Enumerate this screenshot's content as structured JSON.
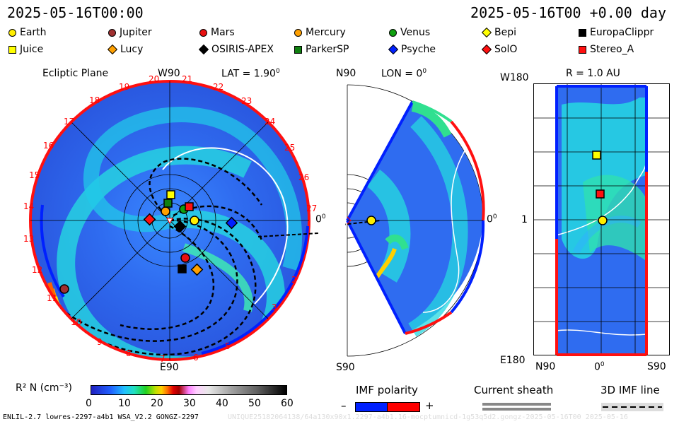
{
  "header": {
    "date_left": "2025-05-16T00:00",
    "date_right": "2025-05-16T00 +0.00 day"
  },
  "legend": [
    {
      "label": "Earth",
      "shape": "circle",
      "color": "#ffee00"
    },
    {
      "label": "Jupiter",
      "shape": "circle",
      "color": "#a03030"
    },
    {
      "label": "Mars",
      "shape": "circle",
      "color": "#e81010"
    },
    {
      "label": "Mercury",
      "shape": "circle",
      "color": "#ffa000"
    },
    {
      "label": "Venus",
      "shape": "circle",
      "color": "#10a010"
    },
    {
      "label": "Bepi",
      "shape": "diamond",
      "color": "#ffff00"
    },
    {
      "label": "EuropaClippr",
      "shape": "square",
      "color": "#000000"
    },
    {
      "label": "Juice",
      "shape": "square",
      "color": "#ffff00"
    },
    {
      "label": "Lucy",
      "shape": "diamond",
      "color": "#ffa000"
    },
    {
      "label": "OSIRIS-APEX",
      "shape": "diamond",
      "color": "#000000"
    },
    {
      "label": "ParkerSP",
      "shape": "square",
      "color": "#108010"
    },
    {
      "label": "Psyche",
      "shape": "diamond",
      "color": "#0020ff"
    },
    {
      "label": "SolO",
      "shape": "diamond",
      "color": "#ff1010"
    },
    {
      "label": "Stereo_A",
      "shape": "square",
      "color": "#ff1010"
    }
  ],
  "panel1": {
    "title": "Ecliptic Plane",
    "top_label": "W90",
    "bottom_label": "E90",
    "lat_label": "LAT = 1.90",
    "zero_label": "0",
    "tick_numbers": [
      "20",
      "21",
      "22",
      "23",
      "24",
      "25",
      "26",
      "27",
      "19",
      "18",
      "17",
      "16",
      "15",
      "14",
      "13",
      "12",
      "11",
      "10",
      "9",
      "8",
      "7",
      "6",
      "5",
      "4",
      "3",
      "2"
    ]
  },
  "panel2": {
    "top_label": "N90",
    "bottom_label": "S90",
    "lon_label": "LON = 0",
    "zero_label": "0"
  },
  "panel3": {
    "title": "R = 1.0 AU",
    "top_left": "W180",
    "mid_left": "1",
    "bottom_left": "E180",
    "x_labels": [
      "N90",
      "0",
      "S90"
    ]
  },
  "colorbar": {
    "label": "R² N (cm⁻³)",
    "ticks": [
      "0",
      "10",
      "20",
      "30",
      "40",
      "50",
      "60"
    ]
  },
  "imf": {
    "title": "IMF polarity",
    "minus": "–",
    "plus": "+",
    "negative_color": "#0020ff",
    "positive_color": "#ff0000"
  },
  "sheath": {
    "title": "Current sheath"
  },
  "imfline": {
    "title": "3D IMF line"
  },
  "footer": {
    "left": "ENLIL-2.7 lowres-2297-a4b1 WSA_V2.2 GONGZ-2297",
    "right": "UNIQUE25182064138/64a130x90x1.2297-a4b1.16-mocptumnicd-1g53q5d2.gongz-2025-05-16T00   2025-05-16"
  }
}
